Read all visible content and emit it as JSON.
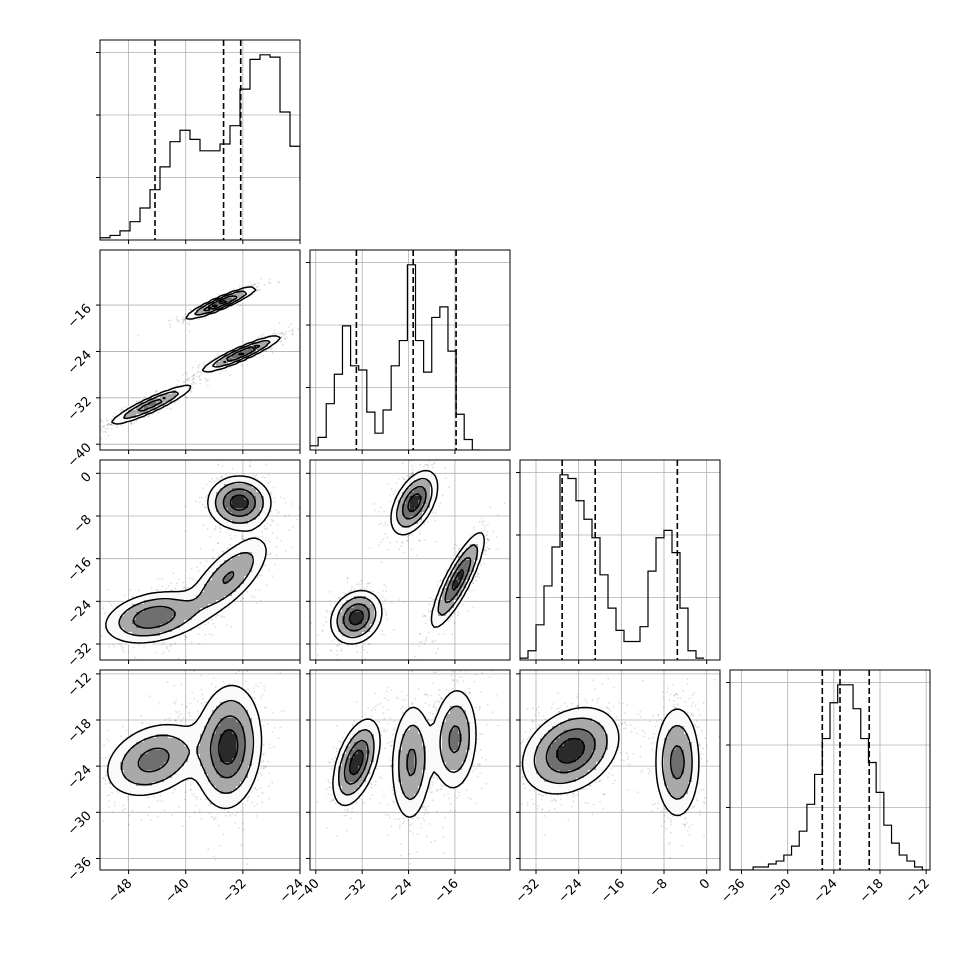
{
  "chart_data": {
    "type": "corner",
    "grid": true,
    "quantiles": "16-50-84 (dashed)",
    "params": [
      {
        "range": [
          -52,
          -24
        ],
        "ticks": [
          -48,
          -40,
          -32,
          -24
        ],
        "tick_labels": [
          "−48",
          "−40",
          "−32",
          "−24"
        ],
        "median": -34.7,
        "q16": -44.3,
        "q84": -32.3,
        "hist": {
          "edges_start": -52,
          "bin_width": 1.4,
          "counts": [
            1,
            2,
            4,
            8,
            14,
            22,
            32,
            43,
            48,
            44,
            39,
            39,
            42,
            50,
            66,
            79,
            81,
            80,
            56,
            41,
            26,
            12,
            5,
            2,
            1,
            0
          ]
        }
      },
      {
        "range": [
          -41,
          -6.5
        ],
        "ticks": [
          -40,
          -32,
          -24,
          -16
        ],
        "tick_labels": [
          "−40",
          "−32",
          "−24",
          "−16"
        ],
        "median": -23.2,
        "q16": -33.0,
        "q84": -15.8,
        "hist": {
          "edges_start": -41,
          "bin_width": 1.4,
          "counts": [
            2,
            6,
            22,
            36,
            59,
            40,
            38,
            18,
            8,
            19,
            40,
            52,
            88,
            52,
            37,
            63,
            68,
            47,
            17,
            5,
            0
          ]
        }
      },
      {
        "range": [
          -35,
          2.5
        ],
        "ticks": [
          -32,
          -24,
          -16,
          -8,
          0
        ],
        "tick_labels": [
          "−32",
          "−24",
          "−16",
          "−8",
          "0"
        ],
        "median": -20.9,
        "q16": -27.1,
        "q84": -5.5,
        "hist": {
          "edges_start": -35,
          "bin_width": 1.5,
          "counts": [
            1,
            5,
            19,
            40,
            61,
            100,
            98,
            86,
            76,
            66,
            46,
            28,
            16,
            10,
            10,
            18,
            48,
            66,
            70,
            58,
            28,
            5,
            1
          ]
        }
      },
      {
        "range": [
          -37.5,
          -11.5
        ],
        "ticks": [
          -36,
          -30,
          -24,
          -18,
          -12
        ],
        "tick_labels": [
          "−36",
          "−30",
          "−24",
          "−18",
          "−12"
        ],
        "median": -23.2,
        "q16": -25.5,
        "q84": -19.4,
        "hist": {
          "edges_start": -37.5,
          "bin_width": 1.0,
          "counts": [
            0,
            0,
            0,
            1,
            1,
            2,
            3,
            5,
            8,
            13,
            22,
            32,
            44,
            56,
            62,
            62,
            54,
            44,
            36,
            26,
            15,
            9,
            5,
            3,
            1,
            0
          ]
        }
      }
    ],
    "pairs": [
      {
        "x": 0,
        "y": 1,
        "modes": [
          {
            "mean": [
              -35.0,
              -15.6
            ],
            "sd": [
              2.5,
              1.4
            ],
            "rho": 0.92,
            "w": 0.3
          },
          {
            "mean": [
              -32.2,
              -24.4
            ],
            "sd": [
              2.8,
              1.6
            ],
            "rho": 0.92,
            "w": 0.35
          },
          {
            "mean": [
              -44.8,
              -33.2
            ],
            "sd": [
              3.0,
              1.8
            ],
            "rho": 0.92,
            "w": 0.35
          }
        ]
      },
      {
        "x": 0,
        "y": 2,
        "modes": [
          {
            "mean": [
              -32.5,
              -5.5
            ],
            "sd": [
              2.2,
              2.5
            ],
            "rho": 0.0,
            "w": 0.31
          },
          {
            "mean": [
              -34.0,
              -19.5
            ],
            "sd": [
              3.0,
              4.0
            ],
            "rho": 0.7,
            "w": 0.3
          },
          {
            "mean": [
              -44.5,
              -27.0
            ],
            "sd": [
              3.5,
              2.5
            ],
            "rho": 0.3,
            "w": 0.39
          }
        ]
      },
      {
        "x": 1,
        "y": 2,
        "modes": [
          {
            "mean": [
              -23.0,
              -5.5
            ],
            "sd": [
              2.0,
              3.0
            ],
            "rho": 0.5,
            "w": 0.33
          },
          {
            "mean": [
              -15.5,
              -20.0
            ],
            "sd": [
              2.3,
              4.5
            ],
            "rho": 0.85,
            "w": 0.33
          },
          {
            "mean": [
              -33.0,
              -27.0
            ],
            "sd": [
              2.2,
              2.5
            ],
            "rho": 0.2,
            "w": 0.34
          }
        ]
      },
      {
        "x": 0,
        "y": 3,
        "modes": [
          {
            "mean": [
              -44.5,
              -23.2
            ],
            "sd": [
              3.5,
              2.5
            ],
            "rho": 0.3,
            "w": 0.4
          },
          {
            "mean": [
              -34.0,
              -21.5
            ],
            "sd": [
              2.3,
              4.0
            ],
            "rho": 0.1,
            "w": 0.6
          }
        ]
      },
      {
        "x": 1,
        "y": 3,
        "modes": [
          {
            "mean": [
              -33.0,
              -23.5
            ],
            "sd": [
              2.0,
              2.8
            ],
            "rho": 0.5,
            "w": 0.34
          },
          {
            "mean": [
              -23.5,
              -23.5
            ],
            "sd": [
              1.8,
              4.0
            ],
            "rho": 0.1,
            "w": 0.33
          },
          {
            "mean": [
              -16.0,
              -20.5
            ],
            "sd": [
              2.0,
              3.5
            ],
            "rho": 0.1,
            "w": 0.33
          }
        ]
      },
      {
        "x": 2,
        "y": 3,
        "modes": [
          {
            "mean": [
              -25.5,
              -22.0
            ],
            "sd": [
              4.5,
              2.8
            ],
            "rho": 0.3,
            "w": 0.67
          },
          {
            "mean": [
              -5.5,
              -23.5
            ],
            "sd": [
              2.2,
              3.8
            ],
            "rho": 0.0,
            "w": 0.33
          }
        ]
      }
    ]
  }
}
